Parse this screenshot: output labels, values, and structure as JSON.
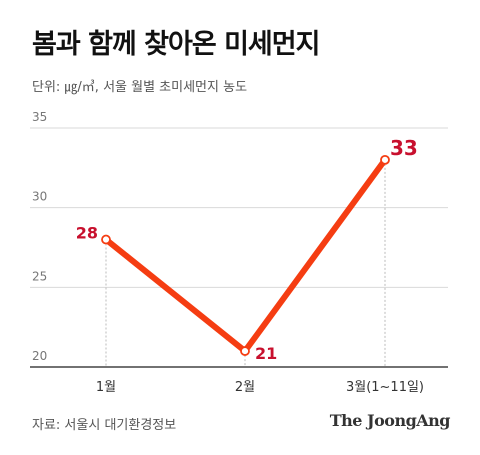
{
  "header": {
    "title": "봄과 함께 찾아온 미세먼지",
    "unit": "단위: ㎍/㎥, 서울 월별 초미세먼지 농도"
  },
  "footer": {
    "source": "자료: 서울시 대기환경정보",
    "logo": "The JoongAng"
  },
  "colors": {
    "line": "#f53d12",
    "label": "#c8102e",
    "grid": "#d9d9d9",
    "axis": "#444444",
    "tick": "#777777"
  },
  "chart_data": {
    "type": "line",
    "categories": [
      "1월",
      "2월",
      "3월(1~11일)"
    ],
    "values": [
      28,
      21,
      33
    ],
    "ylim": [
      20,
      35
    ],
    "yticks": [
      20,
      25,
      30,
      35
    ],
    "grid": true,
    "data_labels": true
  }
}
